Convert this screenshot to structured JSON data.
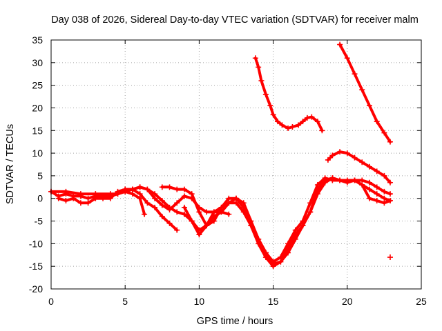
{
  "colors": {
    "series": "#ff0000",
    "frame": "#000000",
    "grid": "#a0a0a0"
  },
  "chart_data": {
    "type": "scatter",
    "title": "Day 038 of 2026, Sidereal Day-to-day VTEC variation (SDTVAR) for receiver malm",
    "xlabel": "GPS time / hours",
    "ylabel": "SDTVAR / TECUs",
    "xlim": [
      0,
      25
    ],
    "ylim": [
      -20,
      35
    ],
    "xticks": [
      0,
      5,
      10,
      15,
      20,
      25
    ],
    "yticks": [
      -20,
      -15,
      -10,
      -5,
      0,
      5,
      10,
      15,
      20,
      25,
      30,
      35
    ],
    "grid": true,
    "marker": "+",
    "series": [
      {
        "name": "s1",
        "x": [
          0,
          0.5,
          1,
          1.5,
          2,
          2.5,
          3,
          3.5,
          4,
          4.5,
          5,
          5.5,
          6,
          6.3
        ],
        "y": [
          1.5,
          0.5,
          1,
          0.5,
          0.5,
          0,
          0.5,
          0.5,
          0.5,
          1,
          1.5,
          1,
          0,
          -3.5
        ]
      },
      {
        "name": "s2",
        "x": [
          0.5,
          1,
          1.5,
          2,
          2.5,
          3,
          3.5,
          4,
          4.5,
          5,
          5.5,
          6,
          6.5,
          7,
          7.5,
          8,
          8.5
        ],
        "y": [
          0,
          -0.5,
          0,
          -1,
          -1,
          0,
          0,
          0,
          1.5,
          2,
          2,
          1,
          -1,
          -2,
          -4,
          -5.5,
          -7
        ]
      },
      {
        "name": "s3",
        "x": [
          0,
          1,
          2,
          3,
          4,
          4.5,
          5,
          5.5,
          6,
          6.5,
          7,
          7.5,
          8,
          8.5,
          9,
          9.5,
          10,
          10.5,
          11,
          11.5,
          12
        ],
        "y": [
          1.5,
          1.5,
          1,
          1,
          1,
          1,
          1.5,
          2,
          2.5,
          2,
          0,
          -1.5,
          -2.5,
          -1,
          0.5,
          0,
          -2,
          -3,
          -3,
          -3,
          -3.5
        ]
      },
      {
        "name": "s4",
        "x": [
          5,
          5.5,
          6,
          6.5,
          7,
          7.5,
          8,
          8.5,
          9,
          9.5,
          10,
          10.5,
          11,
          11.5,
          12,
          12.5,
          13,
          13.5,
          14,
          14.5,
          15,
          15.5,
          16,
          16.5,
          17,
          17.5,
          18,
          18.5,
          19,
          19.5,
          20,
          20.5,
          21,
          21.5,
          22,
          22.5,
          22.9
        ],
        "y": [
          2,
          2,
          2.5,
          2,
          1,
          -0.5,
          -2,
          -3,
          -3.5,
          -5,
          -7,
          -6,
          -4,
          -3,
          -1,
          -1,
          -3,
          -6,
          -9,
          -12,
          -14.5,
          -14,
          -11,
          -8,
          -6,
          -3,
          2,
          4,
          4.5,
          4,
          4,
          4,
          4,
          3.5,
          2.5,
          1.5,
          1
        ]
      },
      {
        "name": "s5",
        "x": [
          7.5,
          8,
          8.5,
          9,
          9.5,
          10,
          10.5,
          11,
          11.5,
          12,
          12.5,
          13,
          13.5,
          14,
          14.5,
          15,
          15.5,
          16,
          16.5,
          17,
          17.5,
          18,
          18.5,
          19,
          19.5,
          20,
          20.5,
          21,
          21.5,
          22,
          22.5,
          22.9
        ],
        "y": [
          2.5,
          2.5,
          2,
          2,
          1,
          -3,
          -6,
          -5,
          -2,
          0,
          0,
          -2,
          -6,
          -10,
          -13,
          -15,
          -14,
          -12,
          -9,
          -6,
          -3,
          1,
          3.5,
          4.5,
          4,
          3.5,
          4,
          3,
          0,
          -0.5,
          -1,
          -0.5
        ]
      },
      {
        "name": "s6",
        "x": [
          9,
          9.5,
          10,
          10.5,
          11,
          11.5,
          12,
          12.5,
          13,
          13.5,
          14,
          14.5,
          15,
          15.5,
          16,
          16.5,
          17,
          17.5,
          18,
          18.5,
          19,
          19.5,
          20,
          20.5,
          21,
          21.5,
          22,
          22.5,
          22.9
        ],
        "y": [
          -2,
          -5,
          -8,
          -6,
          -3,
          -2,
          -1,
          0,
          -1,
          -5,
          -9,
          -12,
          -14,
          -13,
          -10,
          -7,
          -5,
          -1,
          3,
          4.5,
          4,
          4,
          4,
          4,
          3,
          2,
          1,
          0,
          -0.5
        ]
      },
      {
        "name": "s7",
        "x": [
          13.8,
          14,
          14.2,
          14.5,
          14.8,
          15,
          15.3,
          15.6,
          16,
          16.3,
          16.7,
          17,
          17.3,
          17.6,
          18,
          18.3
        ],
        "y": [
          31,
          29,
          26,
          23,
          20.5,
          18.5,
          17,
          16.2,
          15.5,
          15.8,
          16.2,
          17,
          17.8,
          18,
          17,
          15
        ]
      },
      {
        "name": "s8",
        "x": [
          18.7,
          19,
          19.5,
          20,
          20.5,
          21,
          21.5,
          22,
          22.5,
          22.9
        ],
        "y": [
          8.5,
          9.5,
          10.3,
          10,
          9,
          8,
          7,
          6,
          5,
          3.5
        ]
      },
      {
        "name": "s9",
        "x": [
          19.5,
          20,
          20.5,
          21,
          21.5,
          22,
          22.5,
          22.9
        ],
        "y": [
          34,
          31,
          27.5,
          24,
          20.5,
          17,
          14.5,
          12.5
        ]
      },
      {
        "name": "s10",
        "x": [
          22.9
        ],
        "y": [
          -13
        ]
      }
    ]
  },
  "ui": {
    "title": "Day 038 of 2026, Sidereal Day-to-day VTEC variation (SDTVAR) for receiver malm",
    "xlabel": "GPS time / hours",
    "ylabel": "SDTVAR / TECUs"
  }
}
